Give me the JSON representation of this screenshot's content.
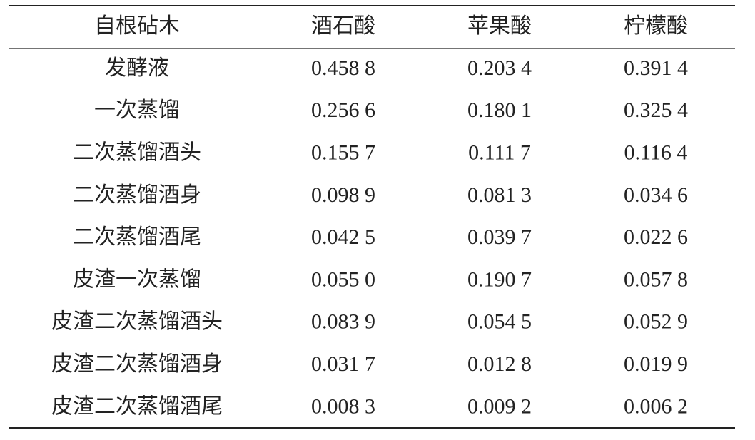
{
  "table": {
    "header": [
      "自根砧木",
      "酒石酸",
      "苹果酸",
      "柠檬酸"
    ],
    "rows": [
      [
        "发酵液",
        "0.458 8",
        "0.203 4",
        "0.391 4"
      ],
      [
        "一次蒸馏",
        "0.256 6",
        "0.180 1",
        "0.325 4"
      ],
      [
        "二次蒸馏酒头",
        "0.155 7",
        "0.111 7",
        "0.116 4"
      ],
      [
        "二次蒸馏酒身",
        "0.098 9",
        "0.081 3",
        "0.034 6"
      ],
      [
        "二次蒸馏酒尾",
        "0.042 5",
        "0.039 7",
        "0.022 6"
      ],
      [
        "皮渣一次蒸馏",
        "0.055 0",
        "0.190 7",
        "0.057 8"
      ],
      [
        "皮渣二次蒸馏酒头",
        "0.083 9",
        "0.054 5",
        "0.052 9"
      ],
      [
        "皮渣二次蒸馏酒身",
        "0.031 7",
        "0.012 8",
        "0.019 9"
      ],
      [
        "皮渣二次蒸馏酒尾",
        "0.008 3",
        "0.009 2",
        "0.006 2"
      ]
    ]
  }
}
